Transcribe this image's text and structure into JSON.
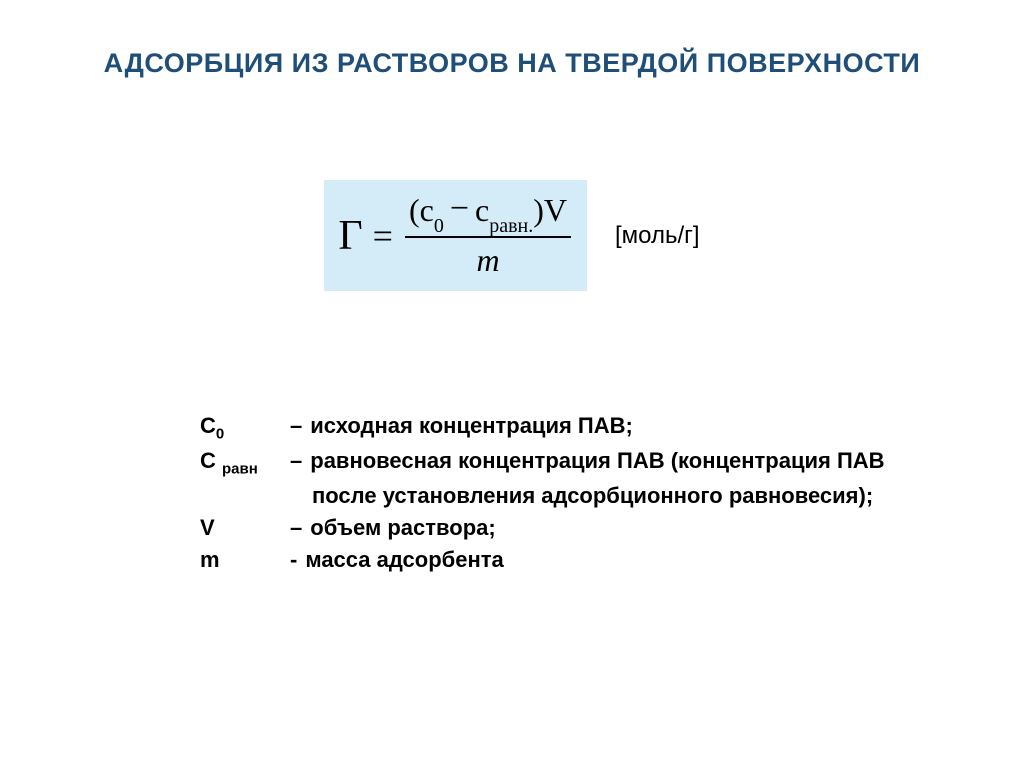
{
  "title": {
    "text": "АДСОРБЦИЯ ИЗ РАСТВОРОВ НА ТВЕРДОЙ ПОВЕРХНОСТИ",
    "color": "#1f4e79",
    "fontsize": 27
  },
  "formula": {
    "background": "#d4ecf7",
    "gamma": "Г",
    "equals": "=",
    "lparen": "(",
    "c0": "c",
    "c0_sub": "0",
    "minus": "−",
    "cr": "c",
    "cr_sub": "равн.",
    "rparen": ")",
    "V": "V",
    "denom": "m",
    "unit": "[моль/г]"
  },
  "defs": {
    "c0_sym": "С",
    "c0_sub": "0",
    "c0_dash": "–",
    "c0_desc": "исходная концентрация ПАВ;",
    "cr_sym": "С ",
    "cr_sub": "равн",
    "cr_dash": "–",
    "cr_desc": "равновесная концентрация ПАВ (концентрация ПАВ",
    "cr_cont": "после установления адсорбционного равновесия);",
    "v_sym": "V",
    "v_dash": "–",
    "v_desc": "объем раствора;",
    "m_sym": "m",
    "m_dash": "-",
    "m_desc": "масса адсорбента"
  }
}
